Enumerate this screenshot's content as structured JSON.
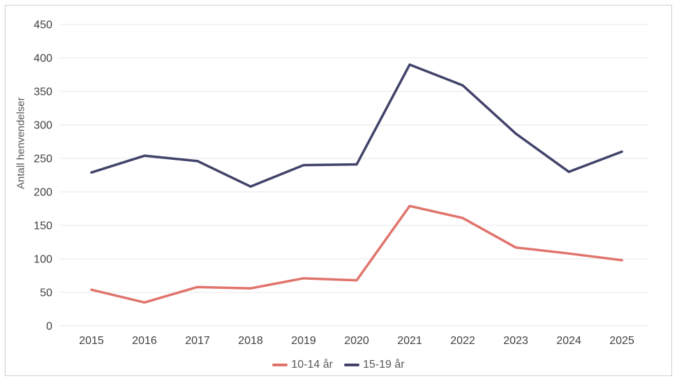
{
  "figure": {
    "background_color": "#ffffff",
    "border_color": "#cfcfcf"
  },
  "chart_data": {
    "type": "line",
    "title": "",
    "xlabel": "",
    "ylabel": "Antall henvendelser",
    "categories": [
      "2015",
      "2016",
      "2017",
      "2018",
      "2019",
      "2020",
      "2021",
      "2022",
      "2023",
      "2024",
      "2025"
    ],
    "series": [
      {
        "name": "10-14 år",
        "color": "#e0746c",
        "values": [
          54,
          35,
          58,
          56,
          71,
          68,
          179,
          161,
          117,
          108,
          98
        ]
      },
      {
        "name": "15-19 år",
        "color": "#41436a",
        "values": [
          229,
          254,
          246,
          208,
          240,
          241,
          390,
          359,
          287,
          230,
          260
        ]
      }
    ],
    "ylim": [
      0,
      450
    ],
    "ytick_step": 50,
    "ytick_labels": [
      "0",
      "50",
      "100",
      "150",
      "200",
      "250",
      "300",
      "350",
      "400",
      "450"
    ],
    "grid": "horizontal",
    "gridline_color": "#e7e7e7",
    "tick_label_color": "#3f3f3f",
    "legend_position": "bottom"
  }
}
